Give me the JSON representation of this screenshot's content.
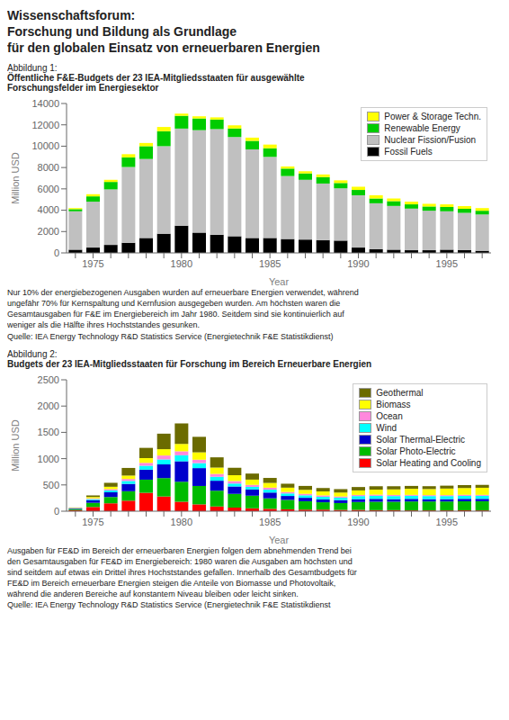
{
  "title": [
    "Wissenschaftsforum:",
    "Forschung und Bildung als Grundlage",
    "für den globalen Einsatz von erneuerbaren Energien"
  ],
  "chart_data": [
    {
      "type": "bar",
      "stacked": true,
      "subtitle": "Abbildung 1:",
      "title": [
        "Öffentliche F&E-Budgets der 23 IEA-Mitgliedsstaaten für ausgewählte",
        "Forschungsfelder im Energiesektor"
      ],
      "xlabel": "Year",
      "ylabel": "Million USD",
      "categories": [
        null,
        "1975",
        null,
        null,
        null,
        null,
        "1980",
        null,
        null,
        null,
        null,
        "1985",
        null,
        null,
        null,
        null,
        "1990",
        null,
        null,
        null,
        null,
        "1995",
        null,
        null
      ],
      "series": [
        {
          "name": "Fossil Fuels",
          "color": "#000000",
          "values": [
            300,
            500,
            750,
            950,
            1400,
            1800,
            2550,
            1900,
            1700,
            1550,
            1400,
            1400,
            1300,
            1250,
            1200,
            1150,
            500,
            350,
            300,
            250,
            250,
            300,
            250,
            200
          ]
        },
        {
          "name": "Nuclear Fission/Fusion",
          "color": "#c0c0c0",
          "values": [
            3600,
            4300,
            5200,
            7100,
            7400,
            8200,
            9100,
            9600,
            9900,
            9300,
            8300,
            7600,
            5900,
            5600,
            5300,
            4900,
            4900,
            4300,
            4100,
            3900,
            3700,
            3600,
            3500,
            3400
          ]
        },
        {
          "name": "Renewable Energy",
          "color": "#00cc00",
          "values": [
            200,
            500,
            700,
            900,
            1200,
            1400,
            1200,
            1100,
            900,
            800,
            800,
            800,
            700,
            600,
            600,
            500,
            500,
            450,
            450,
            400,
            400,
            400,
            380,
            350
          ]
        },
        {
          "name": "Power & Storage Techn.",
          "color": "#ffff00",
          "values": [
            100,
            200,
            200,
            300,
            300,
            400,
            200,
            200,
            200,
            300,
            300,
            350,
            200,
            200,
            250,
            250,
            300,
            300,
            250,
            250,
            250,
            250,
            250,
            250
          ]
        }
      ],
      "ylim": [
        0,
        14000
      ],
      "yticks": [
        0,
        2000,
        4000,
        6000,
        8000,
        10000,
        12000,
        14000
      ],
      "legend": "upper right",
      "grid": false,
      "annotations": [
        "Nur 10% der energiebezogenen Ausgaben wurden auf erneuerbare Energien verwendet, während\nungefähr 70% für Kernspaltung und Kernfusion ausgegeben wurden. Am höchsten waren die\nGesamtausgaben für F&E im Energiebereich im Jahr 1980. Seitdem sind sie kontinuierlich auf\nweniger als die Hälfte ihres Hochststandes gesunken.\nQuelle: IEA Energy Technology R&D Statistics Service (Energietechnik F&E Statistikdienst)"
      ]
    },
    {
      "type": "bar",
      "stacked": true,
      "subtitle": "Abbildung 2:",
      "title": [
        "Budgets der 23 IEA-Mitgliedsstaaten für Forschung im Bereich Erneuerbare Energien"
      ],
      "xlabel": "Year",
      "ylabel": "Million USD",
      "categories": [
        null,
        "1975",
        null,
        null,
        null,
        null,
        "1980",
        null,
        null,
        null,
        null,
        "1985",
        null,
        null,
        null,
        null,
        "1990",
        null,
        null,
        null,
        null,
        "1995",
        null,
        null
      ],
      "series": [
        {
          "name": "Solar Heating and Cooling",
          "color": "#ff0000",
          "values": [
            20,
            80,
            150,
            200,
            350,
            280,
            180,
            130,
            90,
            70,
            55,
            45,
            35,
            30,
            30,
            25,
            25,
            20,
            20,
            15,
            15,
            15,
            15,
            15
          ]
        },
        {
          "name": "Solar Photo-Electric",
          "color": "#00bb00",
          "values": [
            20,
            80,
            120,
            180,
            250,
            350,
            380,
            350,
            300,
            260,
            240,
            200,
            180,
            160,
            140,
            130,
            150,
            160,
            160,
            170,
            170,
            170,
            175,
            175
          ]
        },
        {
          "name": "Solar Thermal-Electric",
          "color": "#0000cc",
          "values": [
            10,
            50,
            90,
            140,
            190,
            260,
            390,
            340,
            190,
            140,
            120,
            110,
            75,
            65,
            55,
            55,
            55,
            55,
            50,
            50,
            45,
            45,
            45,
            45
          ]
        },
        {
          "name": "Wind",
          "color": "#00ffff",
          "values": [
            5,
            20,
            35,
            55,
            75,
            95,
            115,
            95,
            75,
            58,
            48,
            55,
            48,
            48,
            48,
            48,
            58,
            58,
            58,
            58,
            58,
            58,
            58,
            58
          ]
        },
        {
          "name": "Ocean",
          "color": "#ff88dd",
          "values": [
            5,
            15,
            25,
            38,
            55,
            75,
            75,
            65,
            55,
            45,
            38,
            38,
            28,
            28,
            28,
            22,
            22,
            22,
            22,
            18,
            18,
            18,
            18,
            18
          ]
        },
        {
          "name": "Biomass",
          "color": "#ffff00",
          "values": [
            5,
            25,
            45,
            65,
            90,
            120,
            140,
            140,
            120,
            110,
            100,
            90,
            82,
            75,
            75,
            75,
            85,
            95,
            105,
            115,
            115,
            125,
            130,
            135
          ]
        },
        {
          "name": "Geothermal",
          "color": "#6b6b00",
          "values": [
            5,
            30,
            75,
            145,
            195,
            295,
            390,
            295,
            195,
            145,
            115,
            95,
            75,
            75,
            65,
            65,
            65,
            65,
            60,
            55,
            55,
            55,
            55,
            55
          ]
        }
      ],
      "ylim": [
        0,
        2500
      ],
      "yticks": [
        0,
        500,
        1000,
        1500,
        2000,
        2500
      ],
      "legend": "upper right",
      "grid": false,
      "annotations": [
        "Ausgaben für FE&D im Bereich der erneuerbaren Energien folgen dem abnehmenden Trend bei\nden Gesamtausgaben für FE&D im Energiebereich: 1980 waren die Ausgaben am höchsten und\nsind seitdem auf etwas ein Drittel ihres Hochststandes gefallen. Innerhalb des Gesamtbudgets für\nFE&D im Bereich erneuerbare Energien steigen die Anteile von Biomasse und Photovoltaik,\nwährend die anderen Bereiche auf konstantem Niveau bleiben oder leicht sinken.\nQuelle: IEA Energy Technology R&D Statistics Service (Energietechnik F&E Statistikdienst"
      ]
    }
  ]
}
